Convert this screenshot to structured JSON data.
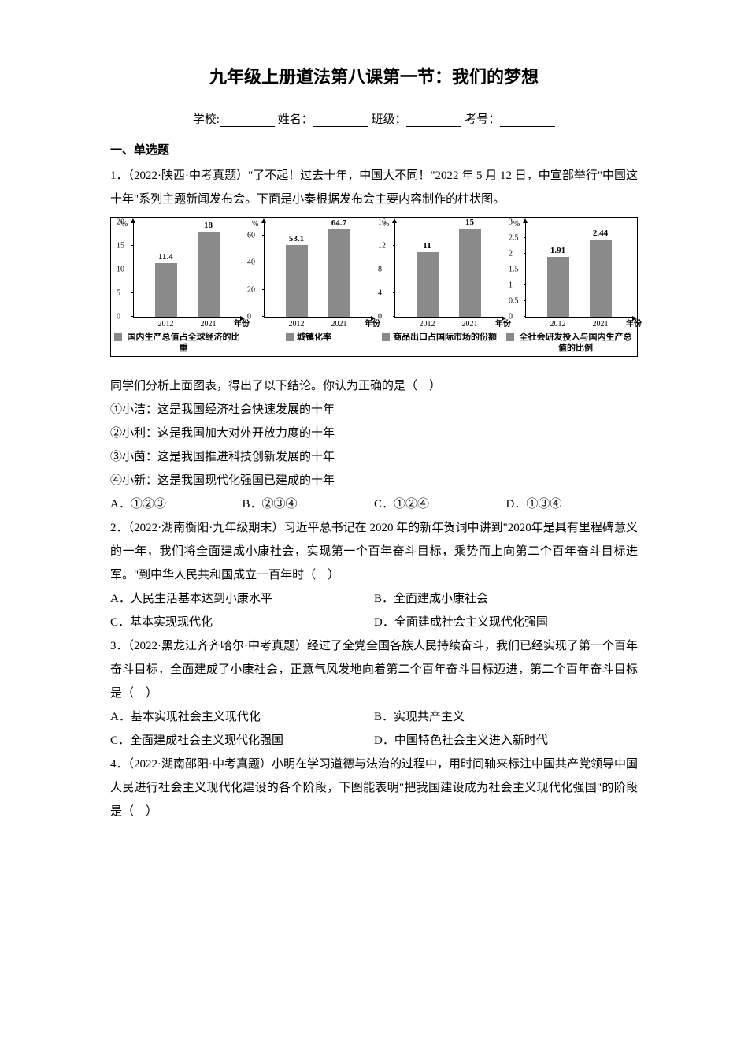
{
  "title": "九年级上册道法第八课第一节：我们的梦想",
  "form": {
    "school": "学校:",
    "name": "姓名：",
    "class": "班级：",
    "exam_no": "考号："
  },
  "section1": "一、单选题",
  "q1": {
    "stem": "1．（2022·陕西·中考真题）\"了不起！过去十年，中国大不同！\"2022 年 5 月 12 日，中宣部举行\"中国这十年\"系列主题新闻发布会。下面是小秦根据发布会主要内容制作的柱状图。",
    "after_chart": "同学们分析上面图表，得出了以下结论。你认为正确的是（　）",
    "s1": "①小洁：这是我国经济社会快速发展的十年",
    "s2": "②小利：这是我国加大对外开放力度的十年",
    "s3": "③小茵：这是我国推进科技创新发展的十年",
    "s4": "④小新：这是我国现代化强国已建成的十年",
    "optA": "A．①②③",
    "optB": "B．②③④",
    "optC": "C．①②④",
    "optD": "D．①③④"
  },
  "charts": {
    "bar_color": "#8a8a8a",
    "c1": {
      "y_unit": "%",
      "ymax": 20,
      "yticks": [
        0,
        5,
        10,
        15,
        20
      ],
      "categories": [
        "2012",
        "2021"
      ],
      "values": [
        11.4,
        18
      ],
      "value_labels": [
        "11.4",
        "18"
      ],
      "xaxis_label": "年份",
      "legend": "国内生产总值占全球经济的比重"
    },
    "c2": {
      "y_unit": "%",
      "ymax": 70,
      "yticks": [
        0,
        20,
        40,
        60
      ],
      "categories": [
        "2012",
        "2021"
      ],
      "values": [
        53.1,
        64.7
      ],
      "value_labels": [
        "53.1",
        "64.7"
      ],
      "xaxis_label": "年份",
      "legend": "城镇化率"
    },
    "c3": {
      "y_unit": "%",
      "ymax": 16,
      "yticks": [
        0,
        4,
        8,
        12,
        16
      ],
      "categories": [
        "2012",
        "2021"
      ],
      "values": [
        11,
        15
      ],
      "value_labels": [
        "11",
        "15"
      ],
      "xaxis_label": "年份",
      "legend": "商品出口占国际市场的份额"
    },
    "c4": {
      "y_unit": "%",
      "ymax": 3,
      "yticks": [
        0,
        0.5,
        1,
        1.5,
        2,
        2.5,
        3
      ],
      "categories": [
        "2012",
        "2021"
      ],
      "values": [
        1.91,
        2.44
      ],
      "value_labels": [
        "1.91",
        "2.44"
      ],
      "xaxis_label": "年份",
      "legend": "全社会研发投入与国内生产总值的比例"
    }
  },
  "q2": {
    "stem": "2．（2022·湖南衡阳·九年级期末）习近平总书记在 2020 年的新年贺词中讲到\"2020年是具有里程碑意义的一年，我们将全面建成小康社会，实现第一个百年奋斗目标，乘势而上向第二个百年奋斗目标进军。\"到中华人民共和国成立一百年时（　）",
    "optA": "A．人民生活基本达到小康水平",
    "optB": "B．全面建成小康社会",
    "optC": "C．基本实现现代化",
    "optD": "D．全面建成社会主义现代化强国"
  },
  "q3": {
    "stem": "3．（2022·黑龙江齐齐哈尔·中考真题）经过了全党全国各族人民持续奋斗，我们已经实现了第一个百年奋斗目标，全面建成了小康社会，正意气风发地向着第二个百年奋斗目标迈进，第二个百年奋斗目标是（　）",
    "optA": "A．基本实现社会主义现代化",
    "optB": "B．实现共产主义",
    "optC": "C．全面建成社会主义现代化强国",
    "optD": "D．中国特色社会主义进入新时代"
  },
  "q4": {
    "stem": "4．（2022·湖南邵阳·中考真题）小明在学习道德与法治的过程中，用时间轴来标注中国共产党领导中国人民进行社会主义现代化建设的各个阶段，下图能表明\"把我国建设成为社会主义现代化强国\"的阶段是（　）"
  }
}
